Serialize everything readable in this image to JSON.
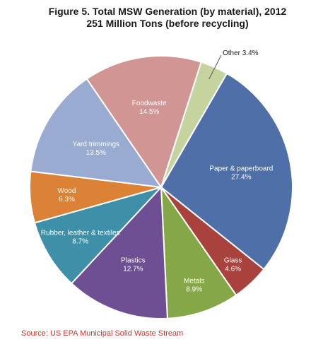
{
  "chart_data": {
    "type": "pie",
    "title": "Figure 5. Total MSW Generation (by material), 2012",
    "subtitle": "251 Million Tons (before recycling)",
    "slices": [
      {
        "name": "Paper & paperboard",
        "value": 27.4,
        "label": "27.4%",
        "color": "#4f6fa8"
      },
      {
        "name": "Glass",
        "value": 4.6,
        "label": "4.6%",
        "color": "#a9423c"
      },
      {
        "name": "Metals",
        "value": 8.9,
        "label": "8.9%",
        "color": "#86a747"
      },
      {
        "name": "Plastics",
        "value": 12.7,
        "label": "12.7%",
        "color": "#6e4f93"
      },
      {
        "name": "Rubber, leather & textiles",
        "value": 8.7,
        "label": "8.7%",
        "color": "#3e8fa8"
      },
      {
        "name": "Wood",
        "value": 6.3,
        "label": "6.3%",
        "color": "#dc8237"
      },
      {
        "name": "Yard trimmings",
        "value": 13.5,
        "label": "13.5%",
        "color": "#9aabd2"
      },
      {
        "name": "Food waste",
        "value": 14.5,
        "label": "14.5%",
        "color": "#d19593"
      },
      {
        "name": "Other",
        "value": 3.4,
        "label": "3.4%",
        "color": "#c5d49f"
      }
    ],
    "slice_titles": {
      "Paper & paperboard": "Paper & paperboard",
      "Glass": "Glass",
      "Metals": "Metals",
      "Plastics": "Plastics",
      "Rubber, leather & textiles": "Rubber, leather & textiles",
      "Wood": "Wood",
      "Yard trimmings": "Yard trimmings",
      "Food waste": "Foodwaste",
      "Other": "Other 3.4%"
    },
    "legend": "none"
  },
  "source": "Source: US EPA Municipal Solid Waste Stream"
}
